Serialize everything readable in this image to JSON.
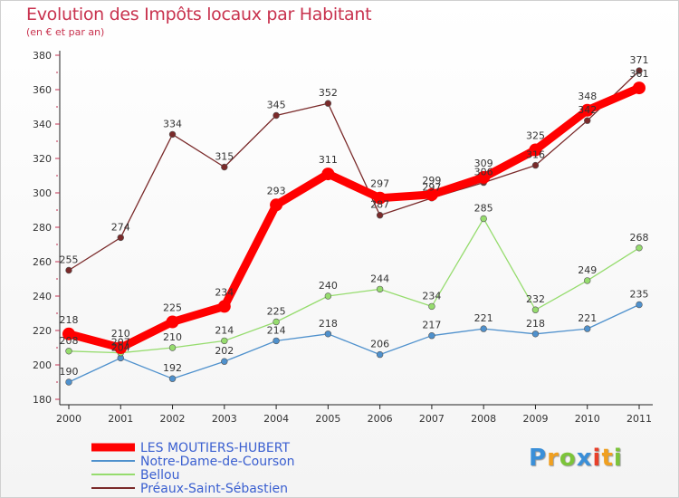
{
  "chart_data": {
    "type": "line",
    "title": "Evolution des Impôts locaux par Habitant",
    "subtitle": "(en € et par an)",
    "xlabel": "",
    "ylabel": "",
    "ylim": [
      180,
      380
    ],
    "yticks": [
      180,
      200,
      220,
      240,
      260,
      280,
      300,
      320,
      340,
      360,
      380
    ],
    "categories": [
      "2000",
      "2001",
      "2002",
      "2003",
      "2004",
      "2005",
      "2006",
      "2007",
      "2008",
      "2009",
      "2010",
      "2011"
    ],
    "series": [
      {
        "name": "LES MOUTIERS-HUBERT",
        "color": "#ff0000",
        "values": [
          218,
          210,
          225,
          234,
          293,
          311,
          297,
          299,
          309,
          325,
          348,
          361
        ]
      },
      {
        "name": "Notre-Dame-de-Courson",
        "color": "#4f91cd",
        "values": [
          190,
          204,
          192,
          202,
          214,
          218,
          206,
          217,
          221,
          218,
          221,
          235
        ]
      },
      {
        "name": "Bellou",
        "color": "#96dc6e",
        "values": [
          208,
          207,
          210,
          214,
          225,
          240,
          244,
          234,
          285,
          232,
          249,
          268
        ]
      },
      {
        "name": "Préaux-Saint-Sébastien",
        "color": "#7a2a2a",
        "values": [
          255,
          274,
          334,
          315,
          345,
          352,
          287,
          297,
          306,
          316,
          342,
          371
        ]
      }
    ],
    "legend_position": "bottom-left",
    "grid": false
  },
  "logo": {
    "letters": [
      "P",
      "r",
      "o",
      "x",
      "i",
      "t",
      "i"
    ],
    "colors": [
      "#3a8fd8",
      "#f0a020",
      "#7cc43a",
      "#3a8fd8",
      "#e8402a",
      "#f0a020",
      "#7cc43a"
    ]
  }
}
